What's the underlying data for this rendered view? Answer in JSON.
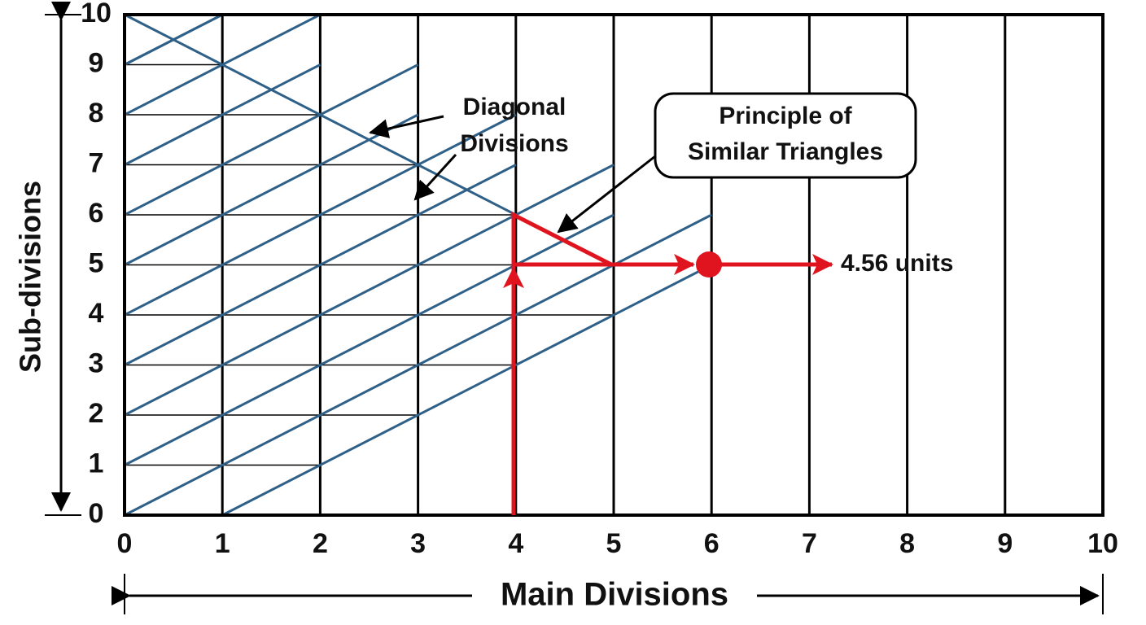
{
  "x_labels": [
    0,
    1,
    2,
    3,
    4,
    5,
    6,
    7,
    8,
    9,
    10
  ],
  "y_labels": [
    0,
    1,
    2,
    3,
    4,
    5,
    6,
    7,
    8,
    9,
    10
  ],
  "x_axis_label": "Main Divisions",
  "y_axis_label": "Sub-divisions",
  "annotations": {
    "diagonal_divisions": [
      "Diagonal",
      "Divisions"
    ],
    "similar_triangles": [
      "Principle of",
      "Similar Triangles"
    ],
    "result": "4.56 units"
  }
}
